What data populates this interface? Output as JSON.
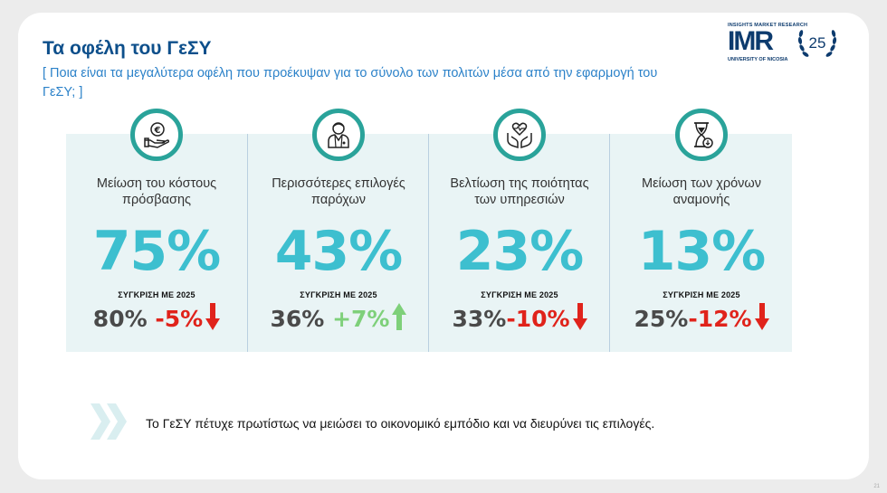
{
  "title": "Τα οφέλη του ΓεΣΥ",
  "subtitle": "[ Ποια είναι τα μεγαλύτερα οφέλη που προέκυψαν για το σύνολο των πολιτών μέσα από την εφαρμογή του ΓεΣΥ; ]",
  "logo": {
    "top_text": "INSIGHTS MARKET RESEARCH",
    "brand": "IMR",
    "university": "UNIVERSITY OF NICOSIA",
    "anniversary": "25"
  },
  "compare_label": "ΣΥΓΚΡΙΣΗ ΜΕ 2025",
  "panels": [
    {
      "icon": "euro-hand-icon",
      "label": "Μείωση του κόστους πρόσβασης",
      "value": "75%",
      "previous": "80%",
      "delta": "-5%",
      "direction": "down"
    },
    {
      "icon": "doctor-icon",
      "label": "Περισσότερες επιλογές παρόχων",
      "value": "43%",
      "previous": "36%",
      "delta": "+7%",
      "direction": "up"
    },
    {
      "icon": "care-hands-heart-icon",
      "label": "Βελτίωση της ποιότητας των υπηρεσιών",
      "value": "23%",
      "previous": "33%",
      "delta": "-10%",
      "direction": "down"
    },
    {
      "icon": "hourglass-icon",
      "label": "Μείωση των χρόνων αναμονής",
      "value": "13%",
      "previous": "25%",
      "delta": "-12%",
      "direction": "down"
    }
  ],
  "colors": {
    "title": "#0d4f8b",
    "subtitle": "#2c82c9",
    "accent_teal": "#3dbfcf",
    "icon_ring": "#2aa39a",
    "negative": "#e0231b",
    "positive": "#7ed07a",
    "panel_bg": "#e9f4f5"
  },
  "footer": {
    "icon": "double-chevron-right-icon",
    "text": "Το ΓεΣΥ πέτυχε πρωτίστως να μειώσει το οικονομικό εμπόδιο και να διευρύνει τις επιλογές."
  },
  "page_number": "21"
}
